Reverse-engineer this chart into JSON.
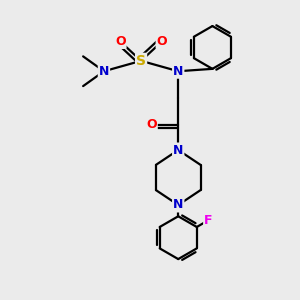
{
  "background_color": "#ebebeb",
  "atom_colors": {
    "C": "#000000",
    "N": "#0000cc",
    "O": "#ff0000",
    "S": "#ccaa00",
    "F": "#ee00ee",
    "H": "#000000"
  },
  "bond_color": "#000000",
  "bond_width": 1.6,
  "figsize": [
    3.0,
    3.0
  ],
  "dpi": 100,
  "xlim": [
    0,
    10
  ],
  "ylim": [
    0,
    10
  ]
}
